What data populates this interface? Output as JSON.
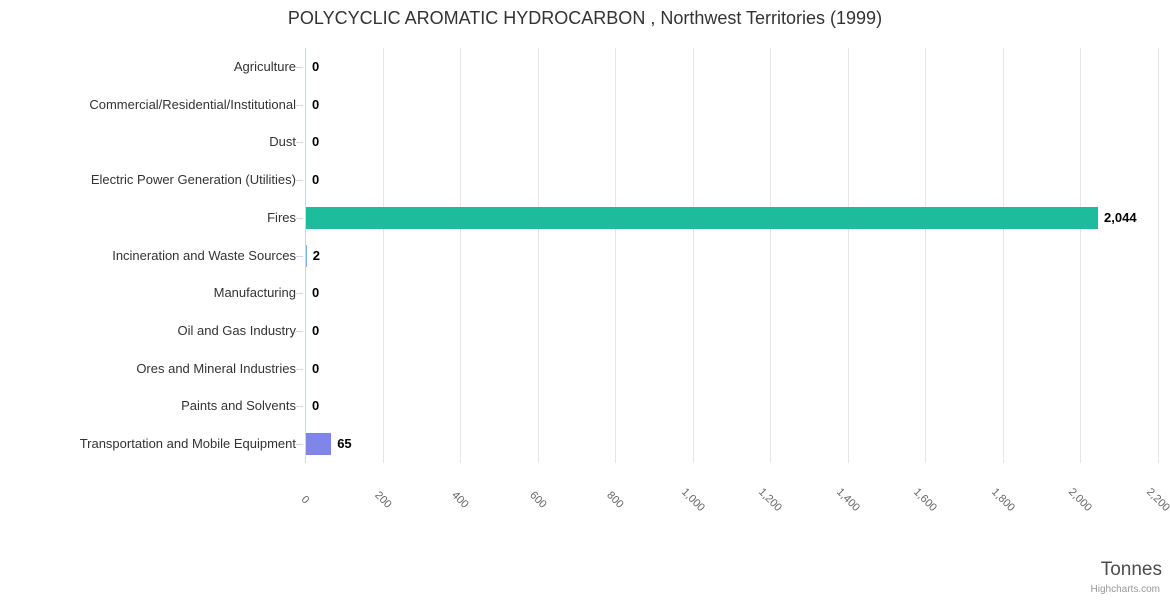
{
  "title": "POLYCYCLIC AROMATIC HYDROCARBON , Northwest Territories (1999)",
  "axis_title": "Tonnes",
  "credits": "Highcharts.com",
  "colors": {
    "bar_teal": "#1dbc9d",
    "bar_purple": "#8085e9",
    "default_bar": "#7cb5ec",
    "axis_line": "#ccd6eb",
    "gridline": "#e6e6e6",
    "title_text": "#333333",
    "category_text": "#333333",
    "tick_text": "#666666",
    "data_label_text": "#000000",
    "axis_title_text": "#4d4d4d",
    "credits_text": "#999999"
  },
  "chart_data": {
    "type": "bar",
    "orientation": "horizontal",
    "title": "POLYCYCLIC AROMATIC HYDROCARBON , Northwest Territories (1999)",
    "xlabel": "Tonnes",
    "ylabel": "",
    "grid": true,
    "legend": false,
    "categories": [
      "Agriculture",
      "Commercial/Residential/Institutional",
      "Dust",
      "Electric Power Generation (Utilities)",
      "Fires",
      "Incineration and Waste Sources",
      "Manufacturing",
      "Oil and Gas Industry",
      "Ores and Mineral Industries",
      "Paints and Solvents",
      "Transportation and Mobile Equipment"
    ],
    "values": [
      0,
      0,
      0,
      0,
      2044,
      2,
      0,
      0,
      0,
      0,
      65
    ],
    "value_labels": [
      "0",
      "0",
      "0",
      "0",
      "2,044",
      "2",
      "0",
      "0",
      "0",
      "0",
      "65"
    ],
    "bar_colors": [
      null,
      null,
      null,
      null,
      "#1dbc9d",
      null,
      null,
      null,
      null,
      null,
      "#8085e9"
    ],
    "xlim": [
      0,
      2200
    ],
    "xticks": [
      0,
      200,
      400,
      600,
      800,
      1000,
      1200,
      1400,
      1600,
      1800,
      2000,
      2200
    ],
    "xtick_labels": [
      "0",
      "200",
      "400",
      "600",
      "800",
      "1,000",
      "1,200",
      "1,400",
      "1,600",
      "1,800",
      "2,000",
      "2,200"
    ]
  }
}
